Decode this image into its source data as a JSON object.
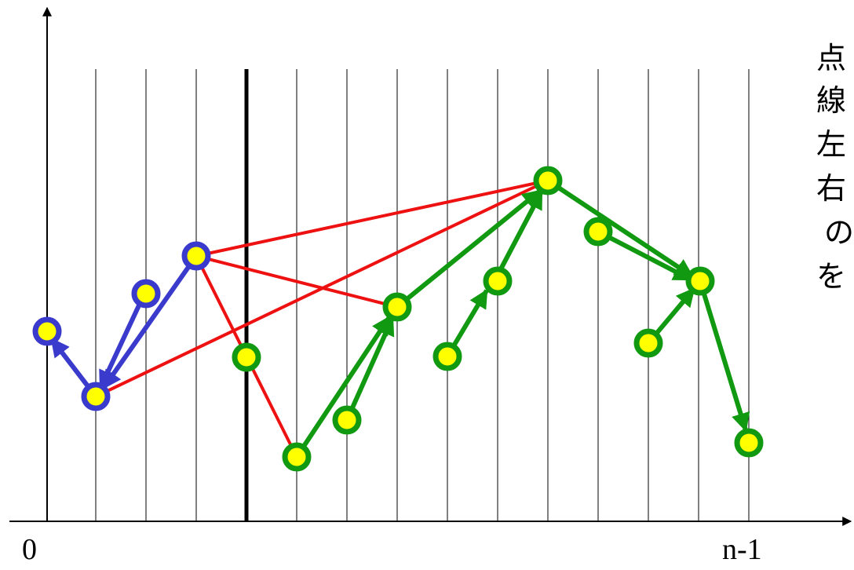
{
  "axis": {
    "x_start_label": "0",
    "x_end_label": "n-1"
  },
  "side_text": [
    "点",
    "線",
    "左",
    "右",
    "の",
    "を"
  ],
  "colors": {
    "left_set": "#3a3acc",
    "right_set": "#119911",
    "cross_edges": "#ee1111",
    "node_fill": "#ffff00",
    "divider": "#000000"
  }
}
